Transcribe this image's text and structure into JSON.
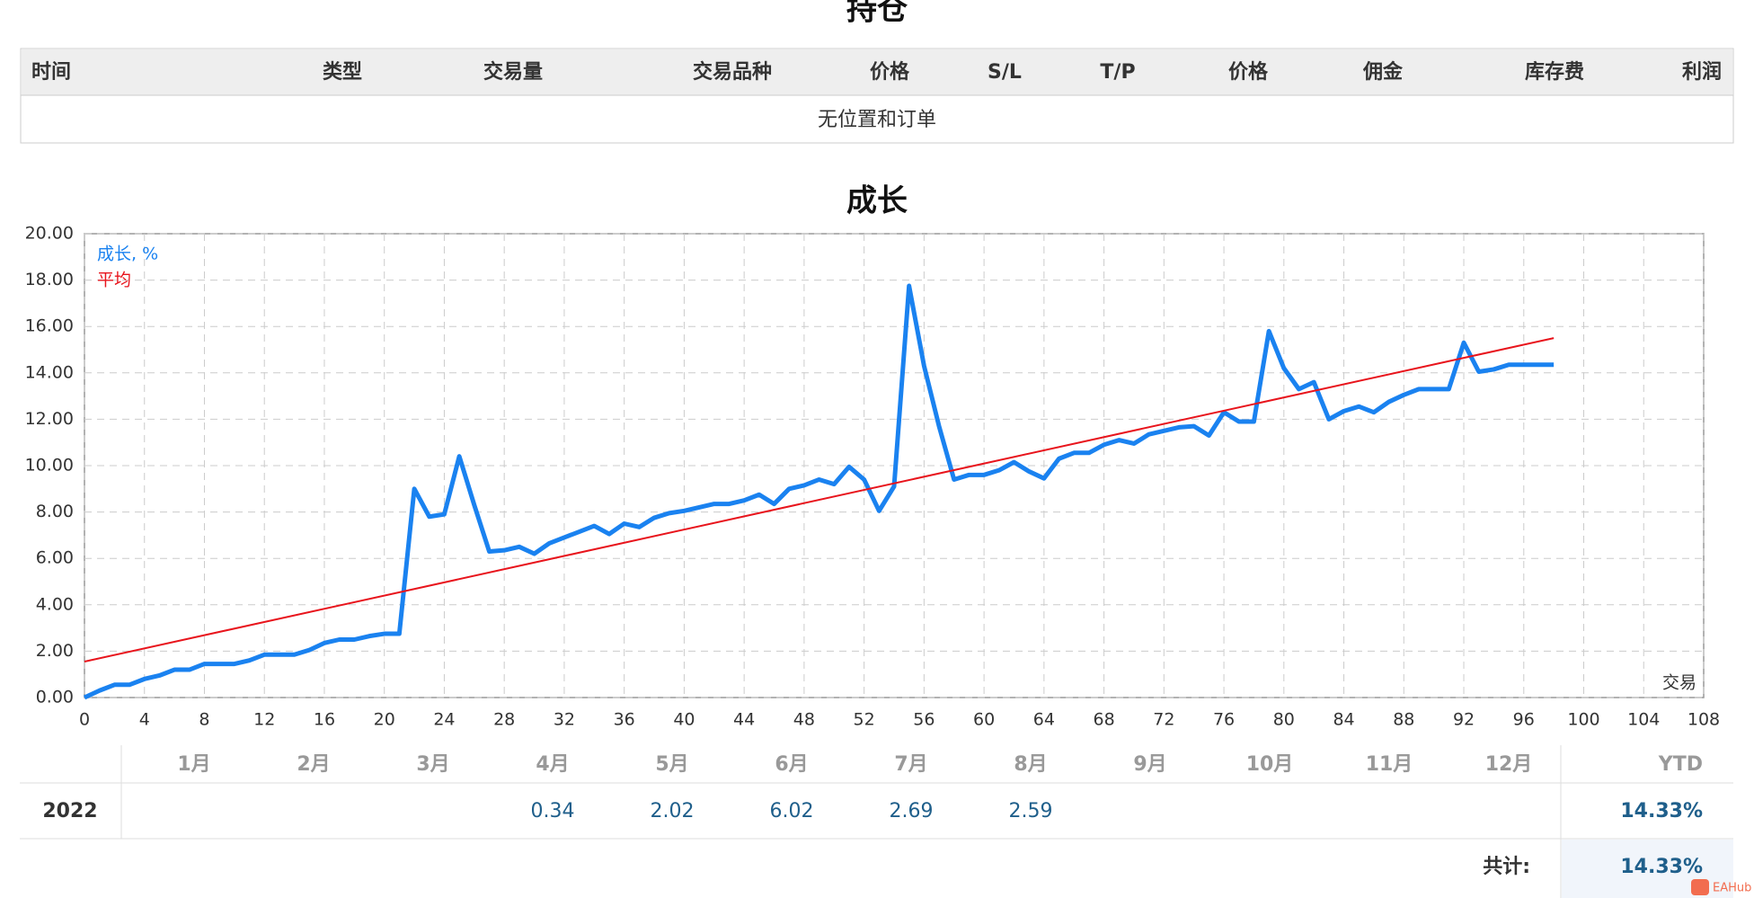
{
  "positions": {
    "title": "持仓",
    "columns": [
      "时间",
      "类型",
      "交易量",
      "交易品种",
      "价格",
      "S/L",
      "T/P",
      "价格",
      "佣金",
      "库存费",
      "利润"
    ],
    "empty_message": "无位置和订单"
  },
  "chart_data": {
    "type": "line",
    "title": "成长",
    "x_label": "交易",
    "x": [
      0,
      1,
      2,
      3,
      4,
      5,
      6,
      7,
      8,
      9,
      10,
      11,
      12,
      13,
      14,
      15,
      16,
      17,
      18,
      19,
      20,
      21,
      22,
      23,
      24,
      25,
      26,
      27,
      28,
      29,
      30,
      31,
      32,
      33,
      34,
      35,
      36,
      37,
      38,
      39,
      40,
      41,
      42,
      43,
      44,
      45,
      46,
      47,
      48,
      49,
      50,
      51,
      52,
      53,
      54,
      55,
      56,
      57,
      58,
      59,
      60,
      61,
      62,
      63,
      64,
      65,
      66,
      67,
      68,
      69,
      70,
      71,
      72,
      73,
      74,
      75,
      76,
      77,
      78,
      79,
      80,
      81,
      82,
      83,
      84,
      85,
      86,
      87,
      88,
      89,
      90,
      91,
      92,
      93,
      94,
      95,
      96,
      97,
      98
    ],
    "series": [
      {
        "name": "成长, %",
        "color": "#1a82f0",
        "values": [
          0,
          0.3,
          0.55,
          0.55,
          0.8,
          0.95,
          1.2,
          1.2,
          1.45,
          1.45,
          1.45,
          1.6,
          1.85,
          1.85,
          1.85,
          2.05,
          2.35,
          2.5,
          2.5,
          2.65,
          2.75,
          2.75,
          9.0,
          7.8,
          7.9,
          10.4,
          8.3,
          6.3,
          6.35,
          6.5,
          6.2,
          6.65,
          6.9,
          7.15,
          7.4,
          7.05,
          7.5,
          7.35,
          7.75,
          7.95,
          8.05,
          8.2,
          8.35,
          8.35,
          8.5,
          8.75,
          8.35,
          9.0,
          9.15,
          9.4,
          9.2,
          9.95,
          9.4,
          8.05,
          9.1,
          17.75,
          14.3,
          11.7,
          9.4,
          9.6,
          9.6,
          9.8,
          10.15,
          9.75,
          9.45,
          10.3,
          10.55,
          10.55,
          10.9,
          11.1,
          10.95,
          11.35,
          11.5,
          11.65,
          11.7,
          11.3,
          12.3,
          11.9,
          11.9,
          15.8,
          14.2,
          13.3,
          13.6,
          12.0,
          12.35,
          12.55,
          12.3,
          12.75,
          13.05,
          13.3,
          13.3,
          13.3,
          15.3,
          14.05,
          14.15,
          14.35,
          14.35,
          14.35,
          14.35
        ]
      },
      {
        "name": "平均",
        "color": "#e8141c",
        "x": [
          0,
          98
        ],
        "values": [
          1.55,
          15.5
        ]
      }
    ],
    "xlim": [
      0,
      108
    ],
    "ylim": [
      0,
      20
    ],
    "xticks": [
      0,
      4,
      8,
      12,
      16,
      20,
      24,
      28,
      32,
      36,
      40,
      44,
      48,
      52,
      56,
      60,
      64,
      68,
      72,
      76,
      80,
      84,
      88,
      92,
      96,
      100,
      104,
      108
    ],
    "yticks": [
      {
        "value": 0,
        "label": "0.00"
      },
      {
        "value": 2,
        "label": "2.00"
      },
      {
        "value": 4,
        "label": "4.00"
      },
      {
        "value": 6,
        "label": "6.00"
      },
      {
        "value": 8,
        "label": "8.00"
      },
      {
        "value": 10,
        "label": "10.00"
      },
      {
        "value": 12,
        "label": "12.00"
      },
      {
        "value": 14,
        "label": "14.00"
      },
      {
        "value": 16,
        "label": "16.00"
      },
      {
        "value": 18,
        "label": "18.00"
      },
      {
        "value": 20,
        "label": "20.00"
      }
    ],
    "grid": true
  },
  "monthly": {
    "columns": [
      "1月",
      "2月",
      "3月",
      "4月",
      "5月",
      "6月",
      "7月",
      "8月",
      "9月",
      "10月",
      "11月",
      "12月",
      "YTD"
    ],
    "rows": [
      {
        "year": "2022",
        "cells": [
          null,
          null,
          null,
          0.34,
          2.02,
          6.02,
          2.69,
          2.59,
          null,
          null,
          null,
          null,
          "14.33%"
        ]
      }
    ],
    "total_label": "共计:",
    "total": "14.33%"
  },
  "watermark": "EAHub"
}
